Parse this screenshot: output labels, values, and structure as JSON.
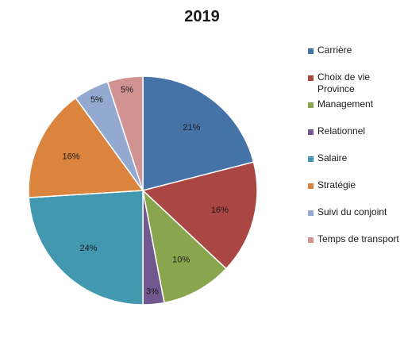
{
  "chart_data": {
    "type": "pie",
    "title": "2019",
    "categories": [
      "Carrière",
      "Choix de vie Province",
      "Management",
      "Relationnel",
      "Salaire",
      "Stratégie",
      "Suivi du conjoint",
      "Temps de transport"
    ],
    "values": [
      21,
      16,
      10,
      3,
      24,
      16,
      5,
      5
    ],
    "labels": [
      "21%",
      "16%",
      "10%",
      "3%",
      "24%",
      "16%",
      "5%",
      "5%"
    ],
    "colors": [
      "#4572A7",
      "#AA4643",
      "#89A54E",
      "#71588F",
      "#4198AF",
      "#DB843D",
      "#93A9CF",
      "#D19392"
    ],
    "legend_position": "right",
    "start_angle": "12 o'clock",
    "direction": "clockwise"
  }
}
